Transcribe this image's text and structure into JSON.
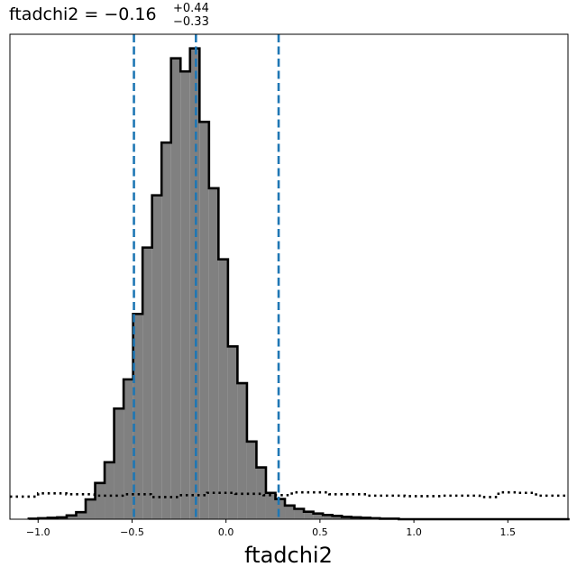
{
  "chart_data": {
    "type": "histogram",
    "title": {
      "main": "ftadchi2 = −0.16",
      "superscript": "+0.44",
      "subscript": "−0.33"
    },
    "xlabel": "ftadchi2",
    "ylabel": "",
    "xlim": [
      -1.15,
      1.82
    ],
    "ylim": [
      0,
      1.03
    ],
    "y_axis_ticks_shown": false,
    "grid": false,
    "xticks": [
      -1.0,
      -0.5,
      0.0,
      0.5,
      1.0,
      1.5
    ],
    "xtick_labels": [
      "−1.0",
      "−0.5",
      "0.0",
      "0.5",
      "1.0",
      "1.5"
    ],
    "posterior_histogram": {
      "fill_color": "#808080",
      "edge_color": "#000000",
      "bin_edges": [
        -1.05,
        -0.9995,
        -0.949,
        -0.8985,
        -0.848,
        -0.7975,
        -0.747,
        -0.6965,
        -0.646,
        -0.5955,
        -0.545,
        -0.4945,
        -0.444,
        -0.3935,
        -0.343,
        -0.2925,
        -0.242,
        -0.1915,
        -0.141,
        -0.0905,
        -0.04,
        0.0105,
        0.061,
        0.1115,
        0.162,
        0.2125,
        0.263,
        0.3135,
        0.364,
        0.4145,
        0.465,
        0.5155,
        0.566,
        0.6165,
        0.667,
        0.7175,
        0.768,
        0.8185,
        0.869,
        0.9195,
        0.97,
        1.0205,
        1.071,
        1.1215,
        1.172,
        1.2225,
        1.273,
        1.3235,
        1.374,
        1.4245,
        1.475,
        1.5255,
        1.576,
        1.6265,
        1.677,
        1.7275,
        1.778,
        1.8285
      ],
      "counts": [
        0.001,
        0.002,
        0.003,
        0.004,
        0.008,
        0.015,
        0.042,
        0.077,
        0.121,
        0.235,
        0.297,
        0.436,
        0.577,
        0.688,
        0.8,
        0.979,
        0.951,
        1.0,
        0.844,
        0.703,
        0.552,
        0.367,
        0.289,
        0.165,
        0.11,
        0.056,
        0.043,
        0.029,
        0.022,
        0.016,
        0.012,
        0.009,
        0.007,
        0.005,
        0.004,
        0.003,
        0.002,
        0.001,
        0.001,
        0.0,
        0.0,
        0.0,
        0.0,
        0.0,
        0.0,
        0.0,
        0.0,
        0.0,
        0.0,
        0.0,
        0.0,
        0.0,
        0.0,
        0.0,
        0.0,
        0.0,
        0.0
      ]
    },
    "prior_histogram": {
      "style": "dotted",
      "color": "#000000",
      "steps": [
        {
          "x0": -1.15,
          "x1": -1.0,
          "y": 0.048
        },
        {
          "x0": -1.0,
          "x1": -0.85,
          "y": 0.055
        },
        {
          "x0": -0.85,
          "x1": -0.7,
          "y": 0.053
        },
        {
          "x0": -0.7,
          "x1": -0.55,
          "y": 0.05
        },
        {
          "x0": -0.55,
          "x1": -0.4,
          "y": 0.053
        },
        {
          "x0": -0.4,
          "x1": -0.25,
          "y": 0.047
        },
        {
          "x0": -0.25,
          "x1": -0.1,
          "y": 0.051
        },
        {
          "x0": -0.1,
          "x1": 0.05,
          "y": 0.056
        },
        {
          "x0": 0.05,
          "x1": 0.2,
          "y": 0.054
        },
        {
          "x0": 0.2,
          "x1": 0.35,
          "y": 0.051
        },
        {
          "x0": 0.35,
          "x1": 0.55,
          "y": 0.057
        },
        {
          "x0": 0.55,
          "x1": 0.75,
          "y": 0.053
        },
        {
          "x0": 0.75,
          "x1": 0.95,
          "y": 0.05
        },
        {
          "x0": 0.95,
          "x1": 1.15,
          "y": 0.049
        },
        {
          "x0": 1.15,
          "x1": 1.35,
          "y": 0.05
        },
        {
          "x0": 1.35,
          "x1": 1.45,
          "y": 0.047
        },
        {
          "x0": 1.45,
          "x1": 1.55,
          "y": 0.057
        },
        {
          "x0": 1.55,
          "x1": 1.65,
          "y": 0.056
        },
        {
          "x0": 1.65,
          "x1": 1.82,
          "y": 0.05
        }
      ]
    },
    "quantile_lines": {
      "color": "#1f77b4",
      "style": "dashed",
      "x": [
        -0.49,
        -0.16,
        0.28
      ]
    }
  }
}
